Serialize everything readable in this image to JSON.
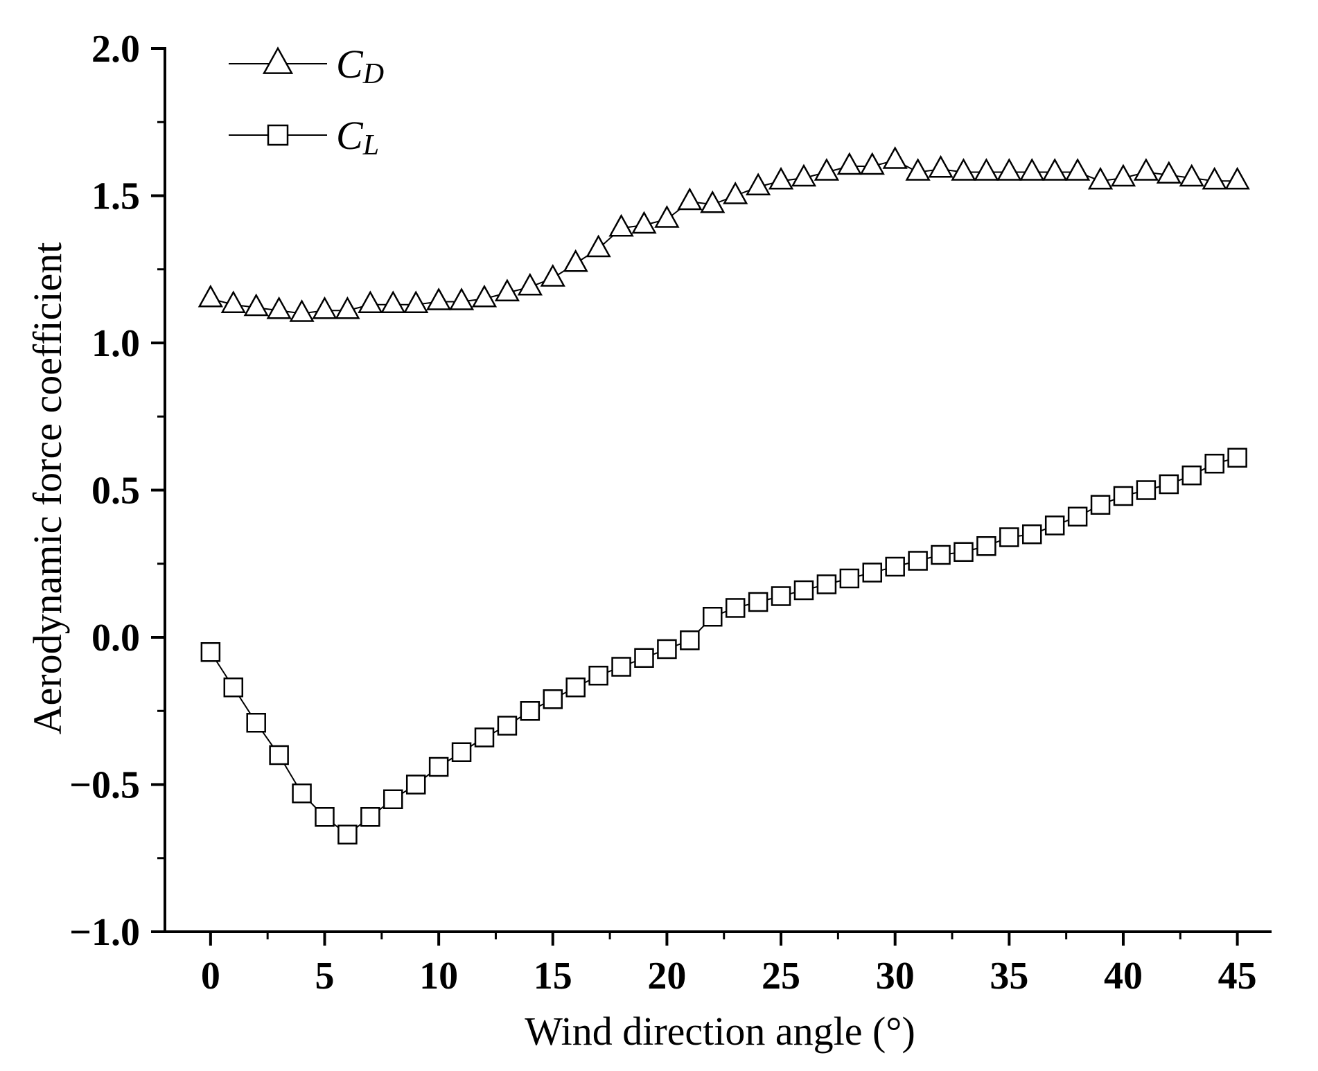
{
  "chart_data": {
    "type": "line",
    "title": "",
    "xlabel": "Wind direction angle (°)",
    "ylabel": "Aerodynamic force coefficient",
    "xlim": [
      -2,
      46.5
    ],
    "ylim": [
      -1.0,
      2.0
    ],
    "xticks": [
      0,
      5,
      10,
      15,
      20,
      25,
      30,
      35,
      40,
      45
    ],
    "xtick_labels": [
      "0",
      "5",
      "10",
      "15",
      "20",
      "25",
      "30",
      "35",
      "40",
      "45"
    ],
    "yticks": [
      -1.0,
      -0.5,
      0.0,
      0.5,
      1.0,
      1.5,
      2.0
    ],
    "ytick_labels": [
      "−1.0",
      "−0.5",
      "0.0",
      "0.5",
      "1.0",
      "1.5",
      "2.0"
    ],
    "grid": false,
    "legend_position": "top-left",
    "x": [
      0,
      1,
      2,
      3,
      4,
      5,
      6,
      7,
      8,
      9,
      10,
      11,
      12,
      13,
      14,
      15,
      16,
      17,
      18,
      19,
      20,
      21,
      22,
      23,
      24,
      25,
      26,
      27,
      28,
      29,
      30,
      31,
      32,
      33,
      34,
      35,
      36,
      37,
      38,
      39,
      40,
      41,
      42,
      43,
      44,
      45
    ],
    "series": [
      {
        "name": "CD",
        "label_main": "C",
        "label_sub": "D",
        "marker": "triangle",
        "values": [
          1.15,
          1.13,
          1.12,
          1.11,
          1.1,
          1.11,
          1.11,
          1.13,
          1.13,
          1.13,
          1.14,
          1.14,
          1.15,
          1.17,
          1.19,
          1.22,
          1.27,
          1.32,
          1.39,
          1.4,
          1.42,
          1.48,
          1.47,
          1.5,
          1.53,
          1.55,
          1.56,
          1.58,
          1.6,
          1.6,
          1.62,
          1.58,
          1.59,
          1.58,
          1.58,
          1.58,
          1.58,
          1.58,
          1.58,
          1.55,
          1.56,
          1.58,
          1.57,
          1.56,
          1.55,
          1.55
        ]
      },
      {
        "name": "CL",
        "label_main": "C",
        "label_sub": "L",
        "marker": "square",
        "values": [
          -0.05,
          -0.17,
          -0.29,
          -0.4,
          -0.53,
          -0.61,
          -0.67,
          -0.61,
          -0.55,
          -0.5,
          -0.44,
          -0.39,
          -0.34,
          -0.3,
          -0.25,
          -0.21,
          -0.17,
          -0.13,
          -0.1,
          -0.07,
          -0.04,
          -0.01,
          0.07,
          0.1,
          0.12,
          0.14,
          0.16,
          0.18,
          0.2,
          0.22,
          0.24,
          0.26,
          0.28,
          0.29,
          0.31,
          0.34,
          0.35,
          0.38,
          0.41,
          0.45,
          0.48,
          0.5,
          0.52,
          0.55,
          0.59,
          0.61
        ]
      }
    ]
  }
}
